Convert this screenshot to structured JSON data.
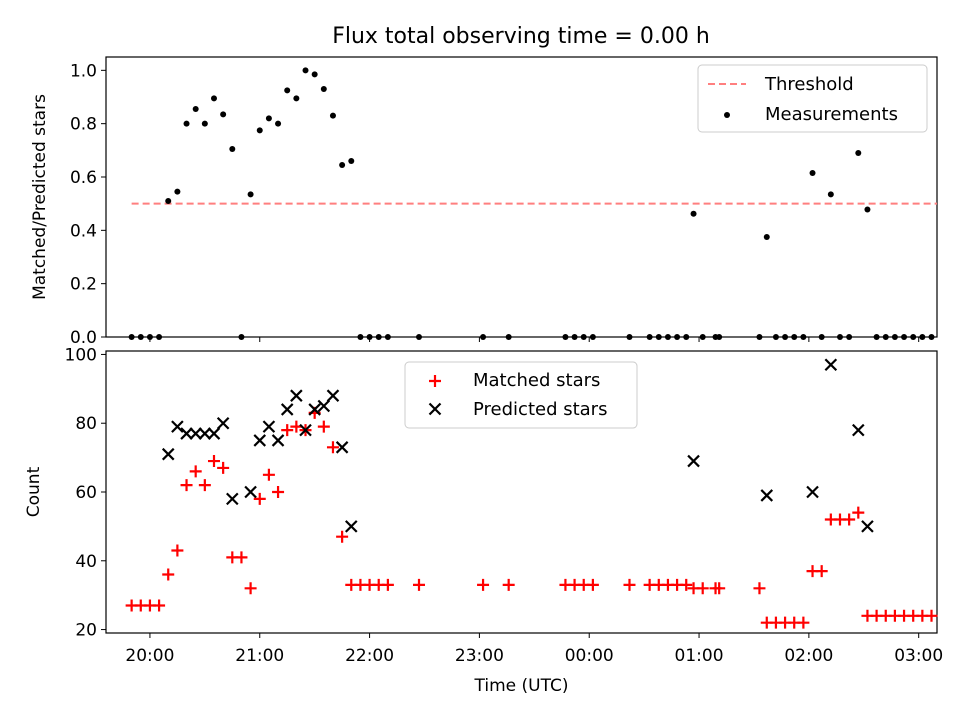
{
  "chart_data": [
    {
      "type": "scatter",
      "title": "Flux total observing time = 0.00 h",
      "ylabel": "Matched/Predicted stars",
      "xlabel": "",
      "ylim": [
        0,
        1.05
      ],
      "xlim": [
        "19:36",
        "03:10"
      ],
      "yticks": [
        "0.0",
        "0.2",
        "0.4",
        "0.6",
        "0.8",
        "1.0"
      ],
      "xticks": [
        "20:00",
        "21:00",
        "22:00",
        "23:00",
        "00:00",
        "01:00",
        "02:00",
        "03:00"
      ],
      "legend_position": "top-right",
      "threshold": {
        "name": "Threshold",
        "value": 0.5,
        "x_range": [
          "19:50",
          "03:10"
        ],
        "color": "#ff7f7f"
      },
      "series": [
        {
          "name": "Measurements",
          "color": "#000000",
          "marker": "dot",
          "points": [
            [
              "19:50",
              0.0
            ],
            [
              "19:55",
              0.0
            ],
            [
              "20:00",
              0.0
            ],
            [
              "20:05",
              0.0
            ],
            [
              "20:10",
              0.51
            ],
            [
              "20:15",
              0.545
            ],
            [
              "20:20",
              0.8
            ],
            [
              "20:25",
              0.855
            ],
            [
              "20:30",
              0.8
            ],
            [
              "20:35",
              0.895
            ],
            [
              "20:40",
              0.835
            ],
            [
              "20:45",
              0.705
            ],
            [
              "20:50",
              0.0
            ],
            [
              "20:55",
              0.535
            ],
            [
              "21:00",
              0.775
            ],
            [
              "21:05",
              0.82
            ],
            [
              "21:10",
              0.8
            ],
            [
              "21:15",
              0.925
            ],
            [
              "21:20",
              0.895
            ],
            [
              "21:25",
              1.0
            ],
            [
              "21:30",
              0.985
            ],
            [
              "21:35",
              0.93
            ],
            [
              "21:40",
              0.83
            ],
            [
              "21:45",
              0.645
            ],
            [
              "21:50",
              0.66
            ],
            [
              "21:55",
              0.0
            ],
            [
              "22:00",
              0.0
            ],
            [
              "22:05",
              0.0
            ],
            [
              "22:10",
              0.0
            ],
            [
              "22:27",
              0.0
            ],
            [
              "23:02",
              0.0
            ],
            [
              "23:16",
              0.0
            ],
            [
              "23:47",
              0.0
            ],
            [
              "23:52",
              0.0
            ],
            [
              "23:57",
              0.0
            ],
            [
              "00:02",
              0.0
            ],
            [
              "00:22",
              0.0
            ],
            [
              "00:33",
              0.0
            ],
            [
              "00:38",
              0.0
            ],
            [
              "00:43",
              0.0
            ],
            [
              "00:48",
              0.0
            ],
            [
              "00:53",
              0.0
            ],
            [
              "00:57",
              0.462
            ],
            [
              "01:02",
              0.0
            ],
            [
              "01:09",
              0.0
            ],
            [
              "01:11",
              0.0
            ],
            [
              "01:33",
              0.0
            ],
            [
              "01:37",
              0.375
            ],
            [
              "01:42",
              0.0
            ],
            [
              "01:47",
              0.0
            ],
            [
              "01:52",
              0.0
            ],
            [
              "01:57",
              0.0
            ],
            [
              "02:02",
              0.615
            ],
            [
              "02:07",
              0.0
            ],
            [
              "02:12",
              0.535
            ],
            [
              "02:17",
              0.0
            ],
            [
              "02:22",
              0.0
            ],
            [
              "02:27",
              0.69
            ],
            [
              "02:32",
              0.478
            ],
            [
              "02:37",
              0.0
            ],
            [
              "02:42",
              0.0
            ],
            [
              "02:47",
              0.0
            ],
            [
              "02:52",
              0.0
            ],
            [
              "02:57",
              0.0
            ],
            [
              "03:02",
              0.0
            ],
            [
              "03:07",
              0.0
            ]
          ]
        }
      ]
    },
    {
      "type": "scatter",
      "title": "",
      "ylabel": "Count",
      "xlabel": "Time (UTC)",
      "ylim": [
        19,
        101
      ],
      "xlim": [
        "19:36",
        "03:10"
      ],
      "yticks": [
        "20",
        "40",
        "60",
        "80",
        "100"
      ],
      "xticks": [
        "20:00",
        "21:00",
        "22:00",
        "23:00",
        "00:00",
        "01:00",
        "02:00",
        "03:00"
      ],
      "legend_position": "top-center",
      "series": [
        {
          "name": "Matched stars",
          "color": "#ff0000",
          "marker": "plus",
          "points": [
            [
              "19:50",
              27
            ],
            [
              "19:55",
              27
            ],
            [
              "20:00",
              27
            ],
            [
              "20:05",
              27
            ],
            [
              "20:10",
              36
            ],
            [
              "20:15",
              43
            ],
            [
              "20:20",
              62
            ],
            [
              "20:25",
              66
            ],
            [
              "20:30",
              62
            ],
            [
              "20:35",
              69
            ],
            [
              "20:40",
              67
            ],
            [
              "20:45",
              41
            ],
            [
              "20:50",
              41
            ],
            [
              "20:55",
              32
            ],
            [
              "21:00",
              58
            ],
            [
              "21:05",
              65
            ],
            [
              "21:10",
              60
            ],
            [
              "21:15",
              78
            ],
            [
              "21:20",
              79
            ],
            [
              "21:25",
              78
            ],
            [
              "21:30",
              83
            ],
            [
              "21:35",
              79
            ],
            [
              "21:40",
              73
            ],
            [
              "21:45",
              47
            ],
            [
              "21:50",
              33
            ],
            [
              "21:55",
              33
            ],
            [
              "22:00",
              33
            ],
            [
              "22:05",
              33
            ],
            [
              "22:10",
              33
            ],
            [
              "22:27",
              33
            ],
            [
              "23:02",
              33
            ],
            [
              "23:16",
              33
            ],
            [
              "23:47",
              33
            ],
            [
              "23:52",
              33
            ],
            [
              "23:57",
              33
            ],
            [
              "00:02",
              33
            ],
            [
              "00:22",
              33
            ],
            [
              "00:33",
              33
            ],
            [
              "00:38",
              33
            ],
            [
              "00:43",
              33
            ],
            [
              "00:48",
              33
            ],
            [
              "00:53",
              33
            ],
            [
              "00:57",
              32
            ],
            [
              "01:02",
              32
            ],
            [
              "01:09",
              32
            ],
            [
              "01:11",
              32
            ],
            [
              "01:33",
              32
            ],
            [
              "01:37",
              22
            ],
            [
              "01:42",
              22
            ],
            [
              "01:47",
              22
            ],
            [
              "01:52",
              22
            ],
            [
              "01:57",
              22
            ],
            [
              "02:02",
              37
            ],
            [
              "02:07",
              37
            ],
            [
              "02:12",
              52
            ],
            [
              "02:17",
              52
            ],
            [
              "02:22",
              52
            ],
            [
              "02:27",
              54
            ],
            [
              "02:32",
              24
            ],
            [
              "02:37",
              24
            ],
            [
              "02:42",
              24
            ],
            [
              "02:47",
              24
            ],
            [
              "02:52",
              24
            ],
            [
              "02:57",
              24
            ],
            [
              "03:02",
              24
            ],
            [
              "03:07",
              24
            ]
          ]
        },
        {
          "name": "Predicted stars",
          "color": "#000000",
          "marker": "x",
          "points": [
            [
              "20:10",
              71
            ],
            [
              "20:15",
              79
            ],
            [
              "20:20",
              77
            ],
            [
              "20:25",
              77
            ],
            [
              "20:30",
              77
            ],
            [
              "20:35",
              77
            ],
            [
              "20:40",
              80
            ],
            [
              "20:45",
              58
            ],
            [
              "20:55",
              60
            ],
            [
              "21:00",
              75
            ],
            [
              "21:05",
              79
            ],
            [
              "21:10",
              75
            ],
            [
              "21:15",
              84
            ],
            [
              "21:20",
              88
            ],
            [
              "21:25",
              78
            ],
            [
              "21:30",
              84
            ],
            [
              "21:35",
              85
            ],
            [
              "21:40",
              88
            ],
            [
              "21:45",
              73
            ],
            [
              "21:50",
              50
            ],
            [
              "00:57",
              69
            ],
            [
              "01:37",
              59
            ],
            [
              "02:02",
              60
            ],
            [
              "02:12",
              97
            ],
            [
              "02:27",
              78
            ],
            [
              "02:32",
              50
            ]
          ]
        }
      ]
    }
  ]
}
